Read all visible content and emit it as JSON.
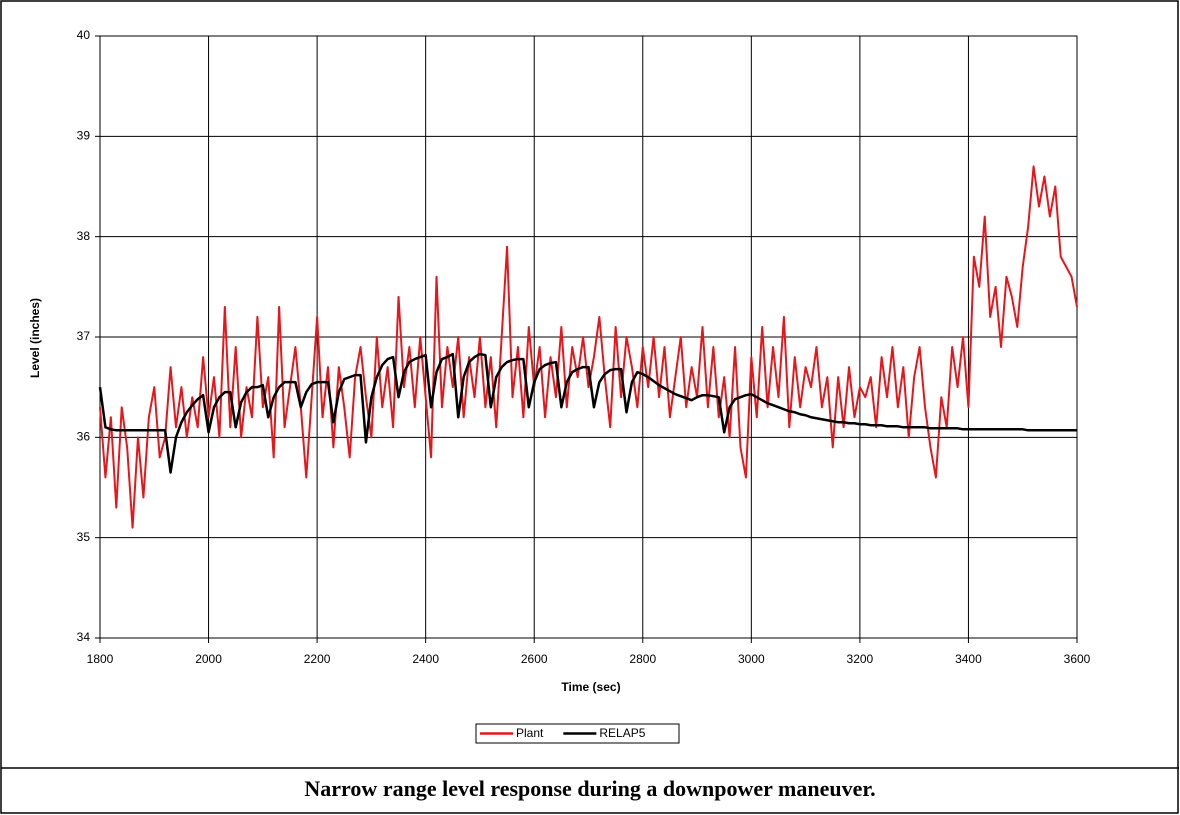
{
  "chart_data": {
    "type": "line",
    "caption": "Narrow range level response during a downpower maneuver.",
    "x_label": "Time (sec)",
    "y_label": "Level (inches)",
    "x": [
      1800,
      1810,
      1820,
      1830,
      1840,
      1850,
      1860,
      1870,
      1880,
      1890,
      1900,
      1910,
      1920,
      1930,
      1940,
      1950,
      1960,
      1970,
      1980,
      1990,
      2000,
      2010,
      2020,
      2030,
      2040,
      2050,
      2060,
      2070,
      2080,
      2090,
      2100,
      2110,
      2120,
      2130,
      2140,
      2150,
      2160,
      2170,
      2180,
      2190,
      2200,
      2210,
      2220,
      2230,
      2240,
      2250,
      2260,
      2270,
      2280,
      2290,
      2300,
      2310,
      2320,
      2330,
      2340,
      2350,
      2360,
      2370,
      2380,
      2390,
      2400,
      2410,
      2420,
      2430,
      2440,
      2450,
      2460,
      2470,
      2480,
      2490,
      2500,
      2510,
      2520,
      2530,
      2540,
      2550,
      2560,
      2570,
      2580,
      2590,
      2600,
      2610,
      2620,
      2630,
      2640,
      2650,
      2660,
      2670,
      2680,
      2690,
      2700,
      2710,
      2720,
      2730,
      2740,
      2750,
      2760,
      2770,
      2780,
      2790,
      2800,
      2810,
      2820,
      2830,
      2840,
      2850,
      2860,
      2870,
      2880,
      2890,
      2900,
      2910,
      2920,
      2930,
      2940,
      2950,
      2960,
      2970,
      2980,
      2990,
      3000,
      3010,
      3020,
      3030,
      3040,
      3050,
      3060,
      3070,
      3080,
      3090,
      3100,
      3110,
      3120,
      3130,
      3140,
      3150,
      3160,
      3170,
      3180,
      3190,
      3200,
      3210,
      3220,
      3230,
      3240,
      3250,
      3260,
      3270,
      3280,
      3290,
      3300,
      3310,
      3320,
      3330,
      3340,
      3350,
      3360,
      3370,
      3380,
      3390,
      3400,
      3410,
      3420,
      3430,
      3440,
      3450,
      3460,
      3470,
      3480,
      3490,
      3500,
      3510,
      3520,
      3530,
      3540,
      3550,
      3560,
      3570,
      3580,
      3590,
      3600
    ],
    "series": [
      {
        "name": "Plant",
        "color": "#e8161b",
        "values": [
          36.3,
          35.6,
          36.2,
          35.3,
          36.3,
          35.9,
          35.1,
          36.0,
          35.4,
          36.2,
          36.5,
          35.8,
          36.0,
          36.7,
          36.1,
          36.5,
          36.0,
          36.4,
          36.1,
          36.8,
          36.2,
          36.6,
          36.0,
          37.3,
          36.1,
          36.9,
          36.0,
          36.5,
          36.2,
          37.2,
          36.3,
          36.6,
          35.8,
          37.3,
          36.1,
          36.5,
          36.9,
          36.3,
          35.6,
          36.4,
          37.2,
          36.2,
          36.7,
          35.9,
          36.7,
          36.3,
          35.8,
          36.6,
          36.9,
          36.4,
          36.0,
          37.0,
          36.3,
          36.7,
          36.1,
          37.4,
          36.5,
          36.9,
          36.3,
          37.0,
          36.4,
          35.8,
          37.6,
          36.3,
          36.9,
          36.5,
          37.0,
          36.2,
          36.8,
          36.4,
          37.0,
          36.3,
          36.8,
          36.1,
          37.0,
          37.9,
          36.4,
          36.9,
          36.2,
          37.1,
          36.5,
          36.9,
          36.2,
          36.8,
          36.4,
          37.1,
          36.3,
          36.9,
          36.6,
          37.0,
          36.5,
          36.8,
          37.2,
          36.6,
          36.1,
          37.1,
          36.4,
          37.0,
          36.7,
          36.3,
          36.9,
          36.5,
          37.0,
          36.4,
          36.9,
          36.2,
          36.6,
          37.0,
          36.3,
          36.7,
          36.4,
          37.1,
          36.3,
          36.9,
          36.2,
          36.6,
          36.0,
          36.9,
          35.9,
          35.6,
          36.8,
          36.2,
          37.1,
          36.3,
          36.9,
          36.4,
          37.2,
          36.1,
          36.8,
          36.3,
          36.7,
          36.5,
          36.9,
          36.3,
          36.6,
          35.9,
          36.6,
          36.1,
          36.7,
          36.2,
          36.5,
          36.4,
          36.6,
          36.1,
          36.8,
          36.4,
          36.9,
          36.3,
          36.7,
          36.0,
          36.6,
          36.9,
          36.3,
          35.9,
          35.6,
          36.4,
          36.1,
          36.9,
          36.5,
          37.0,
          36.3,
          37.8,
          37.5,
          38.2,
          37.2,
          37.5,
          36.9,
          37.6,
          37.4,
          37.1,
          37.7,
          38.1,
          38.7,
          38.3,
          38.6,
          38.2,
          38.5,
          37.8,
          37.7,
          37.6,
          37.3
        ]
      },
      {
        "name": "RELAP5",
        "color": "#000000",
        "values": [
          36.5,
          36.1,
          36.08,
          36.07,
          36.07,
          36.07,
          36.07,
          36.07,
          36.07,
          36.07,
          36.07,
          36.07,
          36.07,
          35.65,
          36.0,
          36.15,
          36.25,
          36.32,
          36.38,
          36.42,
          36.05,
          36.3,
          36.4,
          36.45,
          36.45,
          36.1,
          36.35,
          36.45,
          36.5,
          36.5,
          36.52,
          36.2,
          36.4,
          36.5,
          36.55,
          36.55,
          36.55,
          36.3,
          36.45,
          36.53,
          36.55,
          36.55,
          36.55,
          36.15,
          36.45,
          36.58,
          36.6,
          36.62,
          36.62,
          35.95,
          36.4,
          36.6,
          36.72,
          36.78,
          36.8,
          36.4,
          36.65,
          36.75,
          36.78,
          36.8,
          36.82,
          36.3,
          36.65,
          36.78,
          36.8,
          36.83,
          36.2,
          36.6,
          36.75,
          36.8,
          36.83,
          36.82,
          36.3,
          36.6,
          36.7,
          36.75,
          36.77,
          36.78,
          36.78,
          36.3,
          36.55,
          36.68,
          36.72,
          36.74,
          36.75,
          36.3,
          36.55,
          36.65,
          36.68,
          36.7,
          36.7,
          36.3,
          36.55,
          36.63,
          36.67,
          36.68,
          36.68,
          36.25,
          36.55,
          36.65,
          36.63,
          36.6,
          36.56,
          36.52,
          36.49,
          36.46,
          36.43,
          36.41,
          36.39,
          36.37,
          36.4,
          36.42,
          36.42,
          36.41,
          36.4,
          36.05,
          36.3,
          36.38,
          36.4,
          36.42,
          36.43,
          36.4,
          36.37,
          36.34,
          36.32,
          36.3,
          36.28,
          36.26,
          36.25,
          36.23,
          36.22,
          36.2,
          36.19,
          36.18,
          36.17,
          36.16,
          36.15,
          36.15,
          36.14,
          36.14,
          36.13,
          36.13,
          36.12,
          36.12,
          36.12,
          36.11,
          36.11,
          36.11,
          36.1,
          36.1,
          36.1,
          36.1,
          36.1,
          36.09,
          36.09,
          36.09,
          36.09,
          36.09,
          36.09,
          36.08,
          36.08,
          36.08,
          36.08,
          36.08,
          36.08,
          36.08,
          36.08,
          36.08,
          36.08,
          36.08,
          36.08,
          36.07,
          36.07,
          36.07,
          36.07,
          36.07,
          36.07,
          36.07,
          36.07,
          36.07,
          36.07
        ]
      }
    ],
    "xlim": [
      1800,
      3600
    ],
    "xticks": [
      1800,
      2000,
      2200,
      2400,
      2600,
      2800,
      3000,
      3200,
      3400,
      3600
    ],
    "ylim": [
      34,
      40
    ],
    "yticks": [
      34,
      35,
      36,
      37,
      38,
      39,
      40
    ],
    "grid": true,
    "legend": "bottom"
  }
}
